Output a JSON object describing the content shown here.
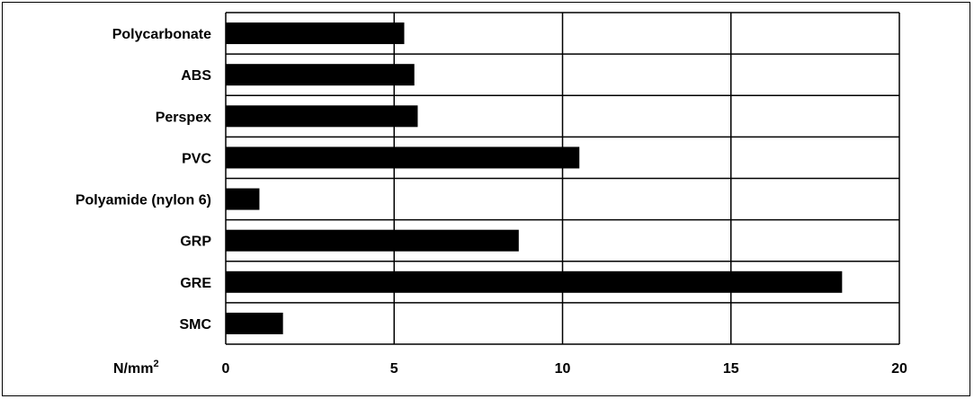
{
  "chart_data": {
    "type": "bar",
    "orientation": "horizontal",
    "categories": [
      "Polycarbonate",
      "ABS",
      "Perspex",
      "PVC",
      "Polyamide (nylon 6)",
      "GRP",
      "GRE",
      "SMC"
    ],
    "values": [
      5.3,
      5.6,
      5.7,
      10.5,
      1.0,
      8.7,
      18.3,
      1.7
    ],
    "xlim": [
      0,
      20
    ],
    "xticks": [
      "0",
      "5",
      "10",
      "15",
      "20"
    ],
    "unit_label": {
      "base": "N/mm",
      "sup": "2"
    },
    "grid": true,
    "legend": "none",
    "bar_color": "#000000"
  }
}
